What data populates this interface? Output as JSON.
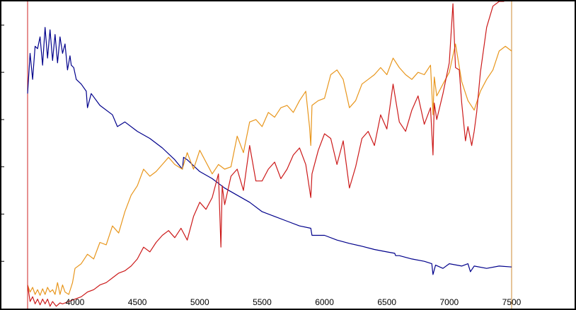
{
  "chart_data": {
    "type": "line",
    "title": "",
    "xlabel": "",
    "ylabel": "",
    "xlim": [
      3620,
      7500
    ],
    "x_ticks": [
      4000,
      4500,
      5000,
      5500,
      6000,
      6500,
      7000,
      7500
    ],
    "x_tick_labels": [
      "4000",
      "4500",
      "5000",
      "5500",
      "6000",
      "6500",
      "7000",
      "7500"
    ],
    "ylim": [
      0,
      6.5
    ],
    "y_ticks": [
      1,
      2,
      3,
      4,
      5,
      6
    ],
    "y_tick_labels": [
      "",
      "",
      "",
      "",
      "",
      ""
    ],
    "grid": false,
    "legend": "none",
    "markers": [
      {
        "x": 3620,
        "color": "#cc2222"
      },
      {
        "x": 7500,
        "color": "#cc8833"
      }
    ],
    "series": [
      {
        "color": "#00008b",
        "x": [
          3620,
          3640,
          3660,
          3680,
          3700,
          3720,
          3740,
          3760,
          3780,
          3800,
          3820,
          3840,
          3860,
          3880,
          3900,
          3920,
          3940,
          3960,
          3970,
          3990,
          4010,
          4050,
          4090,
          4100,
          4130,
          4200,
          4300,
          4340,
          4400,
          4500,
          4600,
          4700,
          4800,
          4861,
          4870,
          4900,
          5000,
          5100,
          5200,
          5300,
          5400,
          5500,
          5600,
          5700,
          5800,
          5890,
          5900,
          6000,
          6100,
          6200,
          6300,
          6400,
          6500,
          6563,
          6570,
          6600,
          6700,
          6800,
          6860,
          6870,
          6890,
          6950,
          7000,
          7100,
          7150,
          7170,
          7200,
          7300,
          7400,
          7500
        ],
        "y": [
          4.55,
          5.4,
          4.85,
          5.55,
          5.5,
          5.75,
          5.15,
          5.95,
          5.3,
          5.9,
          5.25,
          5.8,
          5.2,
          5.75,
          5.4,
          5.6,
          5.05,
          5.35,
          5.15,
          5.1,
          4.85,
          4.75,
          4.6,
          4.25,
          4.55,
          4.3,
          4.1,
          3.85,
          3.95,
          3.75,
          3.6,
          3.4,
          3.15,
          2.95,
          3.2,
          3.15,
          2.9,
          2.75,
          2.55,
          2.4,
          2.25,
          2.05,
          1.95,
          1.85,
          1.75,
          1.7,
          1.55,
          1.55,
          1.45,
          1.38,
          1.32,
          1.25,
          1.2,
          1.17,
          1.12,
          1.12,
          1.05,
          1.0,
          0.95,
          0.72,
          0.92,
          0.85,
          0.95,
          0.9,
          0.95,
          0.78,
          0.9,
          0.85,
          0.9,
          0.88
        ]
      },
      {
        "color": "#e8961c",
        "x": [
          3620,
          3640,
          3660,
          3680,
          3700,
          3720,
          3740,
          3760,
          3780,
          3800,
          3820,
          3840,
          3860,
          3880,
          3900,
          3920,
          3950,
          3980,
          4000,
          4050,
          4100,
          4150,
          4200,
          4250,
          4300,
          4350,
          4400,
          4450,
          4500,
          4550,
          4600,
          4650,
          4700,
          4750,
          4800,
          4860,
          4900,
          4950,
          5000,
          5050,
          5100,
          5150,
          5200,
          5250,
          5300,
          5350,
          5400,
          5450,
          5500,
          5550,
          5600,
          5650,
          5700,
          5750,
          5800,
          5850,
          5880,
          5890,
          5900,
          5950,
          6000,
          6050,
          6100,
          6150,
          6200,
          6250,
          6300,
          6350,
          6400,
          6450,
          6500,
          6550,
          6600,
          6650,
          6700,
          6750,
          6800,
          6850,
          6870,
          6880,
          6900,
          6950,
          7000,
          7050,
          7100,
          7150,
          7200,
          7250,
          7300,
          7350,
          7400,
          7450,
          7500
        ],
        "y": [
          0.5,
          0.35,
          0.45,
          0.3,
          0.4,
          0.28,
          0.42,
          0.3,
          0.45,
          0.35,
          0.4,
          0.3,
          0.55,
          0.3,
          0.5,
          0.35,
          0.3,
          0.55,
          0.85,
          0.95,
          1.15,
          1.05,
          1.4,
          1.35,
          1.75,
          1.6,
          2.05,
          2.4,
          2.6,
          2.95,
          2.8,
          2.9,
          3.05,
          3.2,
          3.05,
          2.95,
          3.3,
          2.95,
          3.35,
          3.1,
          2.85,
          3.05,
          2.95,
          3.0,
          3.65,
          3.3,
          3.95,
          4.0,
          3.85,
          4.15,
          4.05,
          4.25,
          4.3,
          4.15,
          4.4,
          4.6,
          3.85,
          3.45,
          4.3,
          4.4,
          4.45,
          4.95,
          5.05,
          4.85,
          4.25,
          4.4,
          4.75,
          4.85,
          4.95,
          5.1,
          4.95,
          5.3,
          5.1,
          4.95,
          4.85,
          5.0,
          4.95,
          5.15,
          4.1,
          4.9,
          4.5,
          4.75,
          5.0,
          5.6,
          4.8,
          4.4,
          4.2,
          4.6,
          4.85,
          5.05,
          5.45,
          5.55,
          5.45
        ]
      },
      {
        "color": "#cc1a1a",
        "x": [
          3620,
          3640,
          3660,
          3680,
          3700,
          3720,
          3740,
          3760,
          3780,
          3800,
          3820,
          3850,
          3880,
          3900,
          3950,
          4000,
          4050,
          4100,
          4150,
          4200,
          4250,
          4300,
          4350,
          4400,
          4450,
          4500,
          4550,
          4600,
          4650,
          4700,
          4750,
          4800,
          4850,
          4900,
          4950,
          5000,
          5050,
          5100,
          5150,
          5170,
          5180,
          5200,
          5250,
          5300,
          5350,
          5400,
          5450,
          5500,
          5550,
          5600,
          5650,
          5700,
          5750,
          5800,
          5850,
          5890,
          5900,
          5950,
          6000,
          6050,
          6100,
          6150,
          6200,
          6250,
          6300,
          6350,
          6400,
          6450,
          6500,
          6550,
          6600,
          6650,
          6700,
          6750,
          6800,
          6850,
          6870,
          6880,
          6900,
          6950,
          7000,
          7030,
          7050,
          7080,
          7100,
          7130,
          7150,
          7180,
          7200,
          7220,
          7250,
          7300,
          7350,
          7400,
          7440
        ],
        "y": [
          0.5,
          0.15,
          0.25,
          0.1,
          0.2,
          0.08,
          0.2,
          0.1,
          0.2,
          0.05,
          0.15,
          0.05,
          0.12,
          0.1,
          0.15,
          0.2,
          0.25,
          0.35,
          0.4,
          0.5,
          0.55,
          0.65,
          0.75,
          0.8,
          0.9,
          1.05,
          1.3,
          1.2,
          1.4,
          1.55,
          1.65,
          1.5,
          1.7,
          1.45,
          1.95,
          2.25,
          2.1,
          2.35,
          2.85,
          1.3,
          2.6,
          2.2,
          2.8,
          2.95,
          2.5,
          3.45,
          2.7,
          2.7,
          2.95,
          3.1,
          2.75,
          2.95,
          3.25,
          3.4,
          3.05,
          2.35,
          2.85,
          3.35,
          3.7,
          3.6,
          3.05,
          3.55,
          2.55,
          3.0,
          3.6,
          3.75,
          3.45,
          4.1,
          3.8,
          4.75,
          3.95,
          3.75,
          4.2,
          4.5,
          3.9,
          4.25,
          3.25,
          4.35,
          4.0,
          4.55,
          5.2,
          6.45,
          5.1,
          5.05,
          4.35,
          3.55,
          3.85,
          3.45,
          3.75,
          4.15,
          5.0,
          5.95,
          6.4,
          6.5,
          6.5
        ]
      }
    ]
  }
}
